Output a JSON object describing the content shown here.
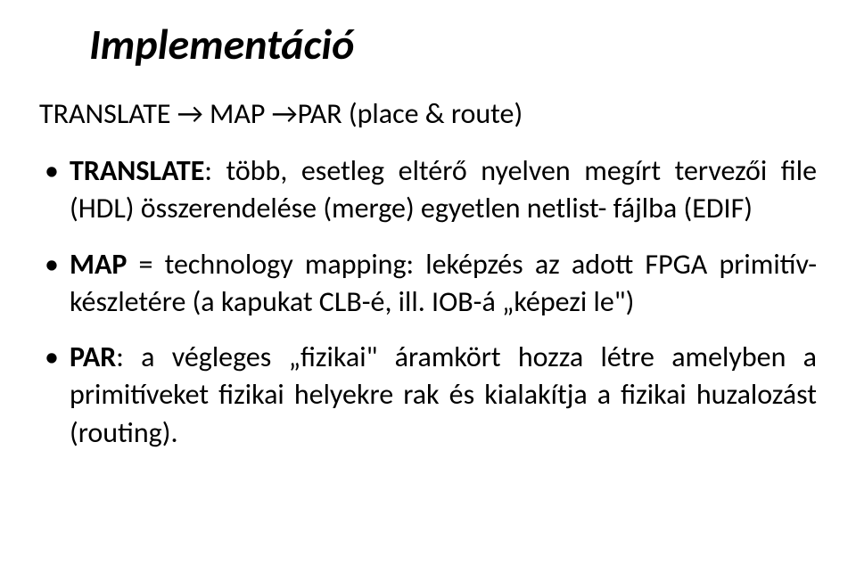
{
  "title": "Implementáció",
  "flow": "TRANSLATE → MAP →PAR (place & route)",
  "bullets": [
    {
      "lead": "TRANSLATE",
      "rest": ": több, esetleg eltérő nyelven megírt tervezői file (HDL) összerendelése (merge) egyetlen netlist- fájlba (EDIF)"
    },
    {
      "lead": "MAP",
      "mid": " = technology mapping: leképzés az adott FPGA primitív-készletére (a kapukat CLB-é, ill. IOB-á „képezi le\")",
      "rest": ""
    },
    {
      "lead": "PAR",
      "rest": ": a végleges „fizikai\" áramkört hozza létre amelyben a primitíveket fizikai helyekre rak és kialakítja a fizikai huzalozást (routing)."
    }
  ]
}
